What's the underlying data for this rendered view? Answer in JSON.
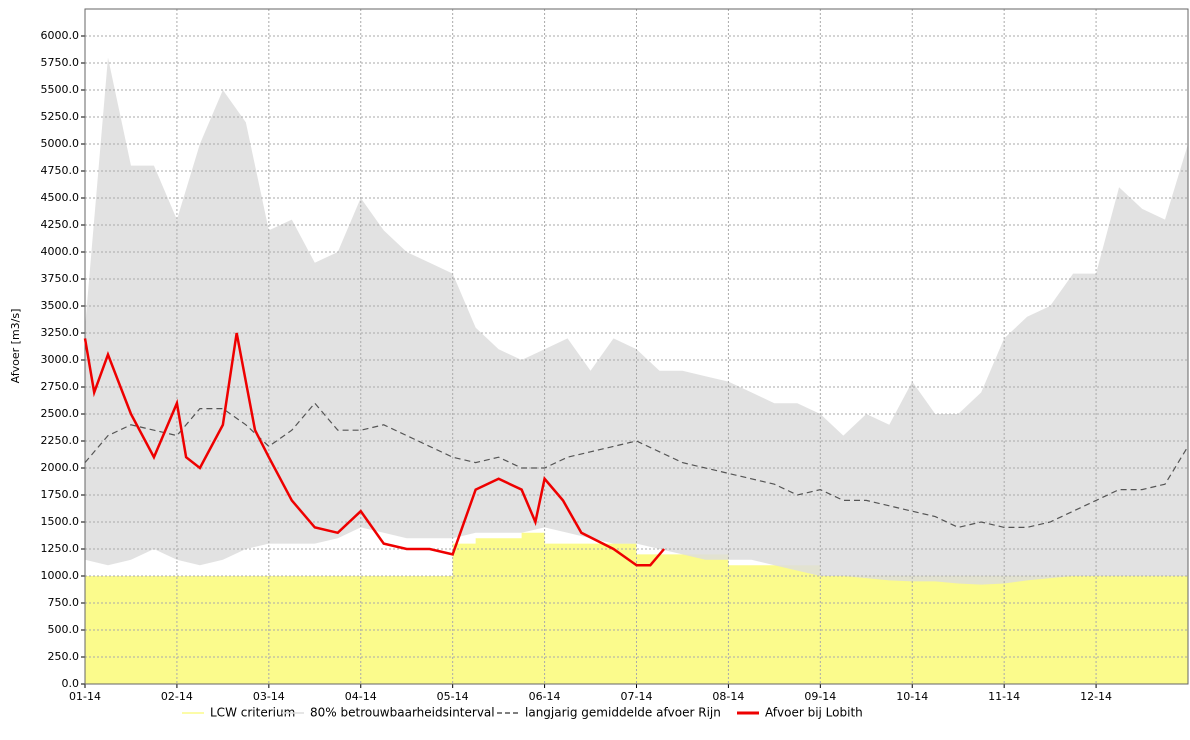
{
  "chart_data": {
    "type": "line",
    "y_label": "Afvoer [m3/s]",
    "xlim": [
      0,
      12
    ],
    "xticks": [
      {
        "value": 0,
        "label": "01-14"
      },
      {
        "value": 1,
        "label": "02-14"
      },
      {
        "value": 2,
        "label": "03-14"
      },
      {
        "value": 3,
        "label": "04-14"
      },
      {
        "value": 4,
        "label": "05-14"
      },
      {
        "value": 5,
        "label": "06-14"
      },
      {
        "value": 6,
        "label": "07-14"
      },
      {
        "value": 7,
        "label": "08-14"
      },
      {
        "value": 8,
        "label": "09-14"
      },
      {
        "value": 9,
        "label": "10-14"
      },
      {
        "value": 10,
        "label": "11-14"
      },
      {
        "value": 11,
        "label": "12-14"
      }
    ],
    "ylim": [
      0,
      6250
    ],
    "yticks": [
      {
        "value": 0,
        "label": "0.0"
      },
      {
        "value": 250,
        "label": "250.0"
      },
      {
        "value": 500,
        "label": "500.0"
      },
      {
        "value": 750,
        "label": "750.0"
      },
      {
        "value": 1000,
        "label": "1000.0"
      },
      {
        "value": 1250,
        "label": "1250.0"
      },
      {
        "value": 1500,
        "label": "1500.0"
      },
      {
        "value": 1750,
        "label": "1750.0"
      },
      {
        "value": 2000,
        "label": "2000.0"
      },
      {
        "value": 2250,
        "label": "2250.0"
      },
      {
        "value": 2500,
        "label": "2500.0"
      },
      {
        "value": 2750,
        "label": "2750.0"
      },
      {
        "value": 3000,
        "label": "3000.0"
      },
      {
        "value": 3250,
        "label": "3250.0"
      },
      {
        "value": 3500,
        "label": "3500.0"
      },
      {
        "value": 3750,
        "label": "3750.0"
      },
      {
        "value": 4000,
        "label": "4000.0"
      },
      {
        "value": 4250,
        "label": "4250.0"
      },
      {
        "value": 4500,
        "label": "4500.0"
      },
      {
        "value": 4750,
        "label": "4750.0"
      },
      {
        "value": 5000,
        "label": "5000.0"
      },
      {
        "value": 5250,
        "label": "5250.0"
      },
      {
        "value": 5500,
        "label": "5500.0"
      },
      {
        "value": 5750,
        "label": "5750.0"
      },
      {
        "value": 6000,
        "label": "6000.0"
      }
    ],
    "grid": true,
    "legend": "bottom",
    "series": [
      {
        "name": "LCW criterium",
        "color": "#fbfb8c",
        "kind": "step-area",
        "x": [
          0,
          4,
          4.25,
          4.75,
          5,
          6,
          7,
          8,
          9
        ],
        "values": [
          1000,
          1300,
          1350,
          1400,
          1300,
          1200,
          1100,
          1000,
          1000
        ]
      },
      {
        "name": "80% betrouwbaarheidsinterval",
        "color": "#dddddd",
        "kind": "band",
        "x": [
          0,
          0.25,
          0.5,
          0.75,
          1,
          1.25,
          1.5,
          1.75,
          2,
          2.25,
          2.5,
          2.75,
          3,
          3.25,
          3.5,
          3.75,
          4,
          4.25,
          4.5,
          4.75,
          5,
          5.25,
          5.5,
          5.75,
          6,
          6.25,
          6.5,
          6.75,
          7,
          7.25,
          7.5,
          7.75,
          8,
          8.25,
          8.5,
          8.75,
          9,
          9.25,
          9.5,
          9.75,
          10,
          10.25,
          10.5,
          10.75,
          11,
          11.25,
          11.5,
          11.75,
          12
        ],
        "values": [
          3300,
          5800,
          4800,
          4800,
          4300,
          5000,
          5500,
          5200,
          4200,
          4300,
          3900,
          4000,
          4500,
          4200,
          4000,
          3900,
          3800,
          3300,
          3100,
          3000,
          3100,
          3200,
          2900,
          3200,
          3100,
          2900,
          2900,
          2850,
          2800,
          2700,
          2600,
          2600,
          2500,
          2300,
          2500,
          2400,
          2800,
          2500,
          2500,
          2700,
          3200,
          3400,
          3500,
          3800,
          3800,
          4600,
          4400,
          4300,
          5000
        ],
        "low": [
          1150,
          1100,
          1150,
          1250,
          1150,
          1100,
          1150,
          1250,
          1300,
          1300,
          1300,
          1350,
          1450,
          1400,
          1350,
          1350,
          1350,
          1400,
          1400,
          1400,
          1450,
          1400,
          1350,
          1300,
          1300,
          1250,
          1200,
          1150,
          1150,
          1150,
          1100,
          1050,
          1000,
          1000,
          980,
          960,
          950,
          950,
          930,
          920,
          930,
          960,
          980,
          1000,
          1000,
          1000,
          1000,
          1000,
          1000
        ]
      },
      {
        "name": "langjarig gemiddelde afvoer Rijn",
        "color": "#555555",
        "kind": "dashed",
        "x": [
          0,
          0.25,
          0.5,
          0.75,
          1,
          1.25,
          1.5,
          1.75,
          2,
          2.25,
          2.5,
          2.75,
          3,
          3.25,
          3.5,
          3.75,
          4,
          4.25,
          4.5,
          4.75,
          5,
          5.25,
          5.5,
          5.75,
          6,
          6.25,
          6.5,
          6.75,
          7,
          7.25,
          7.5,
          7.75,
          8,
          8.25,
          8.5,
          8.75,
          9,
          9.25,
          9.5,
          9.75,
          10,
          10.25,
          10.5,
          10.75,
          11,
          11.25,
          11.5,
          11.75,
          12
        ],
        "values": [
          2050,
          2300,
          2400,
          2350,
          2300,
          2550,
          2550,
          2400,
          2200,
          2350,
          2600,
          2350,
          2350,
          2400,
          2300,
          2200,
          2100,
          2050,
          2100,
          2000,
          2000,
          2100,
          2150,
          2200,
          2250,
          2150,
          2050,
          2000,
          1950,
          1900,
          1850,
          1750,
          1800,
          1700,
          1700,
          1650,
          1600,
          1550,
          1450,
          1500,
          1450,
          1450,
          1500,
          1600,
          1700,
          1800,
          1800,
          1850,
          2200
        ]
      },
      {
        "name": "Afvoer bij Lobith",
        "color": "#ee0000",
        "kind": "line",
        "x": [
          0,
          0.1,
          0.25,
          0.5,
          0.75,
          1,
          1.1,
          1.25,
          1.5,
          1.65,
          1.85,
          2,
          2.25,
          2.5,
          2.75,
          3,
          3.25,
          3.5,
          3.75,
          4,
          4.25,
          4.5,
          4.75,
          4.9,
          5,
          5.2,
          5.4,
          5.75,
          6,
          6.15,
          6.3
        ],
        "values": [
          3200,
          2700,
          3050,
          2500,
          2100,
          2600,
          2100,
          2000,
          2400,
          3250,
          2350,
          2100,
          1700,
          1450,
          1400,
          1600,
          1300,
          1250,
          1250,
          1200,
          1800,
          1900,
          1800,
          1500,
          1900,
          1700,
          1400,
          1250,
          1100,
          1100,
          1250
        ]
      }
    ]
  }
}
